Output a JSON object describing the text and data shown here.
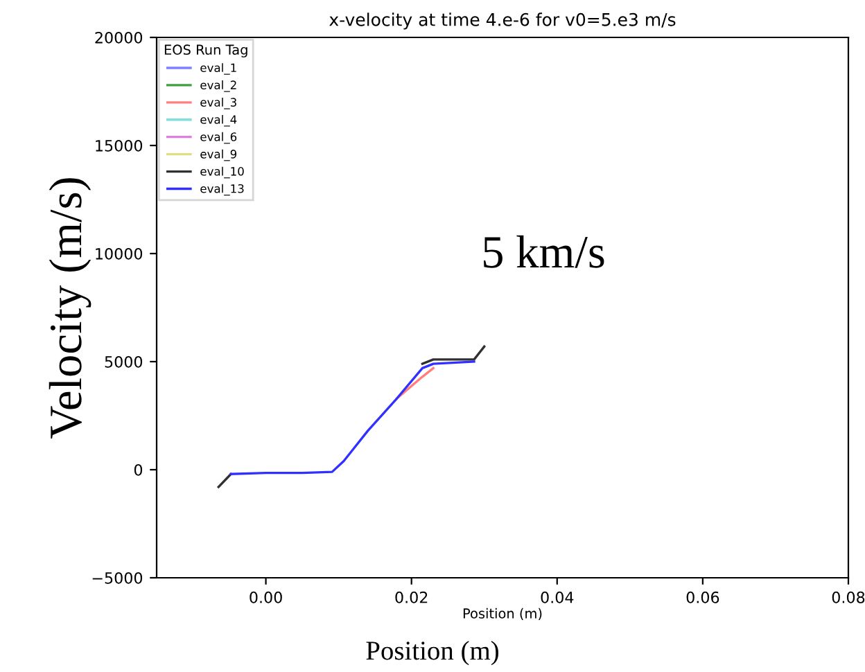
{
  "chart_data": {
    "type": "line",
    "title": "x-velocity at time 4.e-6 for v0=5.e3 m/s",
    "xlabel": "Position (m)",
    "ylabel": "Velocity (m/s)",
    "legend_title": "EOS Run Tag",
    "legend": "top left",
    "grid": false,
    "annotations": [
      "5 km/s",
      "Position (m)"
    ],
    "xlim": [
      -0.015,
      0.08
    ],
    "xticks": [
      {
        "value": 0.0,
        "label": "0.00"
      },
      {
        "value": 0.02,
        "label": "0.02"
      },
      {
        "value": 0.04,
        "label": "0.04"
      },
      {
        "value": 0.06,
        "label": "0.06"
      },
      {
        "value": 0.08,
        "label": "0.08"
      }
    ],
    "ylim": [
      -5000,
      20000
    ],
    "yticks": [
      {
        "value": -5000,
        "label": "−5000"
      },
      0,
      5000,
      10000,
      15000,
      20000
    ],
    "x": [
      -0.0065,
      -0.0048,
      0.0,
      0.005,
      0.0091,
      0.0107,
      0.014,
      0.018,
      0.0215,
      0.023,
      0.0286,
      0.03
    ],
    "series": [
      {
        "name": "eval_1",
        "color": "#7f7fff",
        "values": [
          null,
          null,
          null,
          null,
          null,
          null,
          null,
          null,
          null,
          null,
          null,
          null
        ]
      },
      {
        "name": "eval_2",
        "color": "#40a040",
        "values": [
          null,
          null,
          null,
          null,
          null,
          null,
          null,
          null,
          null,
          null,
          null,
          null
        ]
      },
      {
        "name": "eval_3",
        "color": "#ff7f7f",
        "values": [
          null,
          null,
          null,
          null,
          null,
          null,
          null,
          3300,
          4300,
          4700,
          null,
          null
        ]
      },
      {
        "name": "eval_4",
        "color": "#7fdfdf",
        "values": [
          null,
          null,
          null,
          null,
          null,
          null,
          null,
          null,
          null,
          null,
          null,
          null
        ]
      },
      {
        "name": "eval_6",
        "color": "#df7fdf",
        "values": [
          null,
          null,
          null,
          null,
          null,
          null,
          null,
          null,
          null,
          null,
          null,
          null
        ]
      },
      {
        "name": "eval_9",
        "color": "#dfdf7f",
        "values": [
          null,
          null,
          null,
          null,
          null,
          null,
          null,
          null,
          null,
          null,
          null,
          null
        ]
      },
      {
        "name": "eval_10",
        "color": "#303030",
        "values": [
          -800,
          -200,
          null,
          null,
          null,
          null,
          null,
          null,
          4900,
          5100,
          5100,
          5700
        ]
      },
      {
        "name": "eval_13",
        "color": "#3030ff",
        "values": [
          null,
          -200,
          -150,
          -150,
          -100,
          400,
          1800,
          3300,
          4700,
          4900,
          5000,
          null
        ]
      }
    ]
  }
}
